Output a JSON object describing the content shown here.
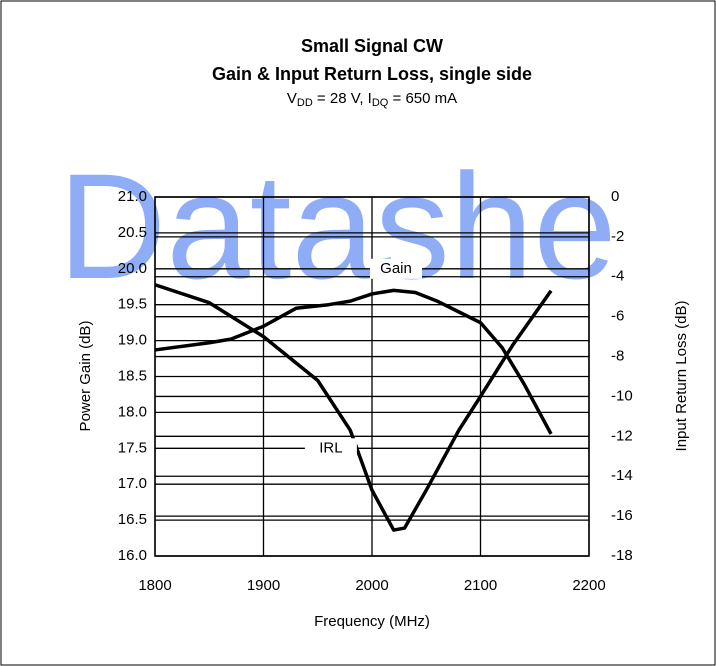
{
  "chart_data": {
    "type": "line",
    "title": "Small Signal CW",
    "title_line2": "Gain & Input Return Loss, single side",
    "subtitle": [
      {
        "text": "V"
      },
      {
        "text": "DD",
        "sub": true
      },
      {
        "text": " = 28 V, I"
      },
      {
        "text": "DQ",
        "sub": true
      },
      {
        "text": " = 650 mA"
      }
    ],
    "watermark": "Datashe",
    "xlabel": "Frequency (MHz)",
    "ylabel": "Power Gain (dB)",
    "y2label": "Input Return Loss (dB)",
    "xlim": [
      1800,
      2200
    ],
    "xticks": [
      1800,
      1900,
      2000,
      2100,
      2200
    ],
    "ylim": [
      16,
      21
    ],
    "yticks": [
      {
        "value": 16,
        "label": "16.0"
      },
      16.5,
      {
        "value": 17,
        "label": "17.0"
      },
      17.5,
      {
        "value": 18,
        "label": "18.0"
      },
      18.5,
      {
        "value": 19,
        "label": "19.0"
      },
      19.5,
      {
        "value": 20,
        "label": "20.0"
      },
      20.5,
      {
        "value": 21,
        "label": "21.0"
      }
    ],
    "y2lim": [
      -18,
      0
    ],
    "y2ticks": [
      -18,
      -16,
      -14,
      -12,
      -10,
      -8,
      -6,
      -4,
      -2,
      0
    ],
    "grid": true,
    "series": [
      {
        "name": "Gain",
        "color": "#000000",
        "x": [
          1800,
          1850,
          1870,
          1900,
          1930,
          1960,
          1980,
          2000,
          2020,
          2040,
          2060,
          2080,
          2100,
          2120,
          2140,
          2165
        ],
        "values": [
          18.87,
          18.97,
          19.02,
          19.2,
          19.45,
          19.5,
          19.55,
          19.65,
          19.7,
          19.67,
          19.55,
          19.4,
          19.25,
          18.9,
          18.4,
          17.7
        ]
      },
      {
        "name": "IRL",
        "color": "#000000",
        "axis": "y2",
        "x": [
          1800,
          1850,
          1900,
          1950,
          1980,
          2000,
          2020,
          2030,
          2050,
          2080,
          2100,
          2130,
          2165
        ],
        "values": [
          -4.4,
          -5.3,
          -7.0,
          -9.2,
          -11.7,
          -14.7,
          -16.7,
          -16.6,
          -14.7,
          -11.7,
          -10.0,
          -7.4,
          -4.7
        ]
      }
    ],
    "annotations": [
      {
        "text": "Gain",
        "x": 2000,
        "y": 20.0
      },
      {
        "text": "IRL",
        "x": 1940,
        "y": 17.5
      }
    ]
  }
}
